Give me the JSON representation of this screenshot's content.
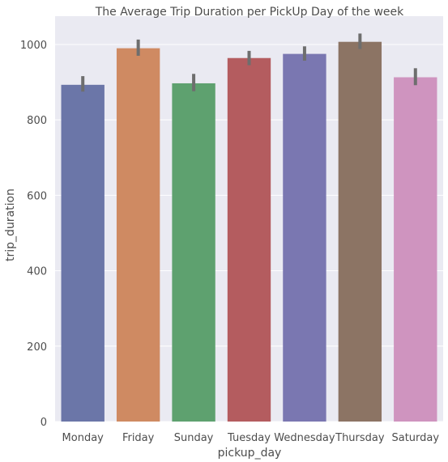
{
  "chart_data": {
    "type": "bar",
    "title": "The Average Trip Duration per PickUp Day of the week",
    "xlabel": "pickup_day",
    "ylabel": "trip_duration",
    "categories": [
      "Monday",
      "Friday",
      "Sunday",
      "Tuesday",
      "Wednesday",
      "Thursday",
      "Saturday"
    ],
    "values": [
      893,
      990,
      897,
      964,
      975,
      1007,
      913
    ],
    "error_low": [
      875,
      970,
      876,
      945,
      957,
      988,
      892
    ],
    "error_high": [
      916,
      1013,
      922,
      983,
      995,
      1029,
      937
    ],
    "colors": [
      "#6b76a8",
      "#cf8a62",
      "#5ea16f",
      "#b45c5f",
      "#7a77b1",
      "#8c7464",
      "#cf94bf"
    ],
    "error_color": "#6e6e6e",
    "yticks": [
      0,
      200,
      400,
      600,
      800,
      1000
    ],
    "ylim": [
      0,
      1075
    ],
    "background": "#eaeaf2",
    "grid": true
  }
}
